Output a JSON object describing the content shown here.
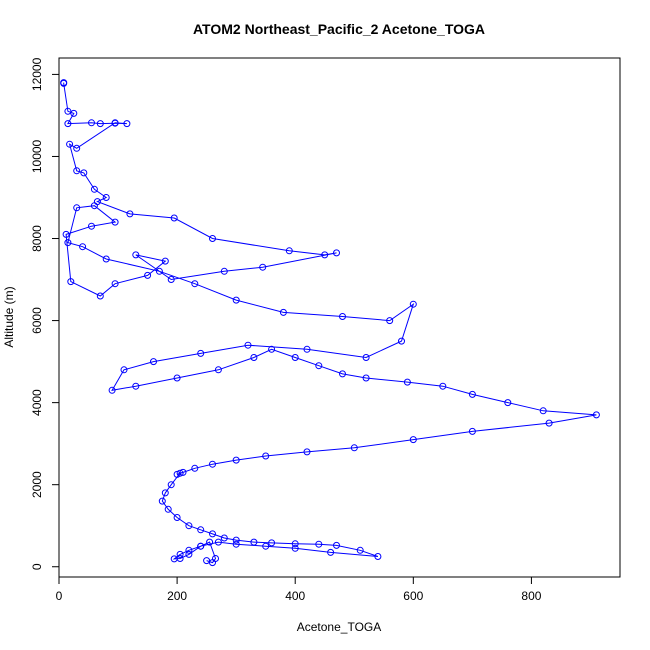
{
  "chart_data": {
    "type": "scatter",
    "title": "ATOM2 Northeast_Pacific_2 Acetone_TOGA",
    "xlabel": "Acetone_TOGA",
    "ylabel": "Altitude (m)",
    "xlim": [
      0,
      950
    ],
    "ylim": [
      -250,
      12400
    ],
    "xticks": [
      0,
      200,
      400,
      600,
      800
    ],
    "yticks": [
      0,
      2000,
      4000,
      6000,
      8000,
      10000,
      12000
    ],
    "grid": false,
    "legend": "none",
    "color": "#0000ff",
    "marker": "open-circle",
    "series": [
      {
        "x": [
          8,
          8,
          15,
          25,
          15,
          55,
          70,
          95,
          115,
          95,
          30,
          18,
          30,
          42,
          60,
          80,
          65,
          120,
          195,
          260,
          390,
          450,
          470,
          345,
          280,
          190,
          130,
          180,
          150,
          95,
          70,
          20,
          12,
          55,
          95,
          60,
          30,
          15,
          40,
          80,
          170,
          230,
          300,
          380,
          480,
          560,
          600,
          580,
          520,
          420,
          320,
          240,
          160,
          110,
          90,
          130,
          200,
          270,
          330,
          360,
          400,
          440,
          480,
          520,
          590,
          650,
          700,
          760,
          820,
          910,
          830,
          700,
          600,
          500,
          420,
          350,
          300,
          260,
          230,
          210,
          200,
          205,
          190,
          180,
          175,
          185,
          200,
          220,
          240,
          260,
          280,
          300,
          330,
          360,
          400,
          440,
          470,
          510,
          540,
          460,
          400,
          350,
          300,
          270,
          240,
          220,
          205,
          195,
          205,
          220,
          240,
          255,
          265,
          260,
          250
        ],
        "y": [
          11800,
          11780,
          11100,
          11050,
          10800,
          10820,
          10800,
          10810,
          10800,
          10820,
          10200,
          10300,
          9650,
          9600,
          9200,
          9000,
          8900,
          8600,
          8500,
          8000,
          7700,
          7600,
          7650,
          7300,
          7200,
          7000,
          7600,
          7450,
          7100,
          6900,
          6600,
          6950,
          8100,
          8300,
          8400,
          8800,
          8750,
          7900,
          7800,
          7500,
          7200,
          6900,
          6500,
          6200,
          6100,
          6000,
          6400,
          5500,
          5100,
          5300,
          5400,
          5200,
          5000,
          4800,
          4300,
          4400,
          4600,
          4800,
          5100,
          5300,
          5100,
          4900,
          4700,
          4600,
          4500,
          4400,
          4200,
          4000,
          3800,
          3700,
          3500,
          3300,
          3100,
          2900,
          2800,
          2700,
          2600,
          2500,
          2400,
          2300,
          2250,
          2280,
          2000,
          1800,
          1600,
          1400,
          1200,
          1000,
          900,
          800,
          700,
          650,
          600,
          580,
          560,
          550,
          520,
          400,
          250,
          350,
          450,
          500,
          550,
          600,
          500,
          300,
          200,
          190,
          300,
          400,
          500,
          600,
          200,
          100,
          150
        ]
      }
    ]
  }
}
